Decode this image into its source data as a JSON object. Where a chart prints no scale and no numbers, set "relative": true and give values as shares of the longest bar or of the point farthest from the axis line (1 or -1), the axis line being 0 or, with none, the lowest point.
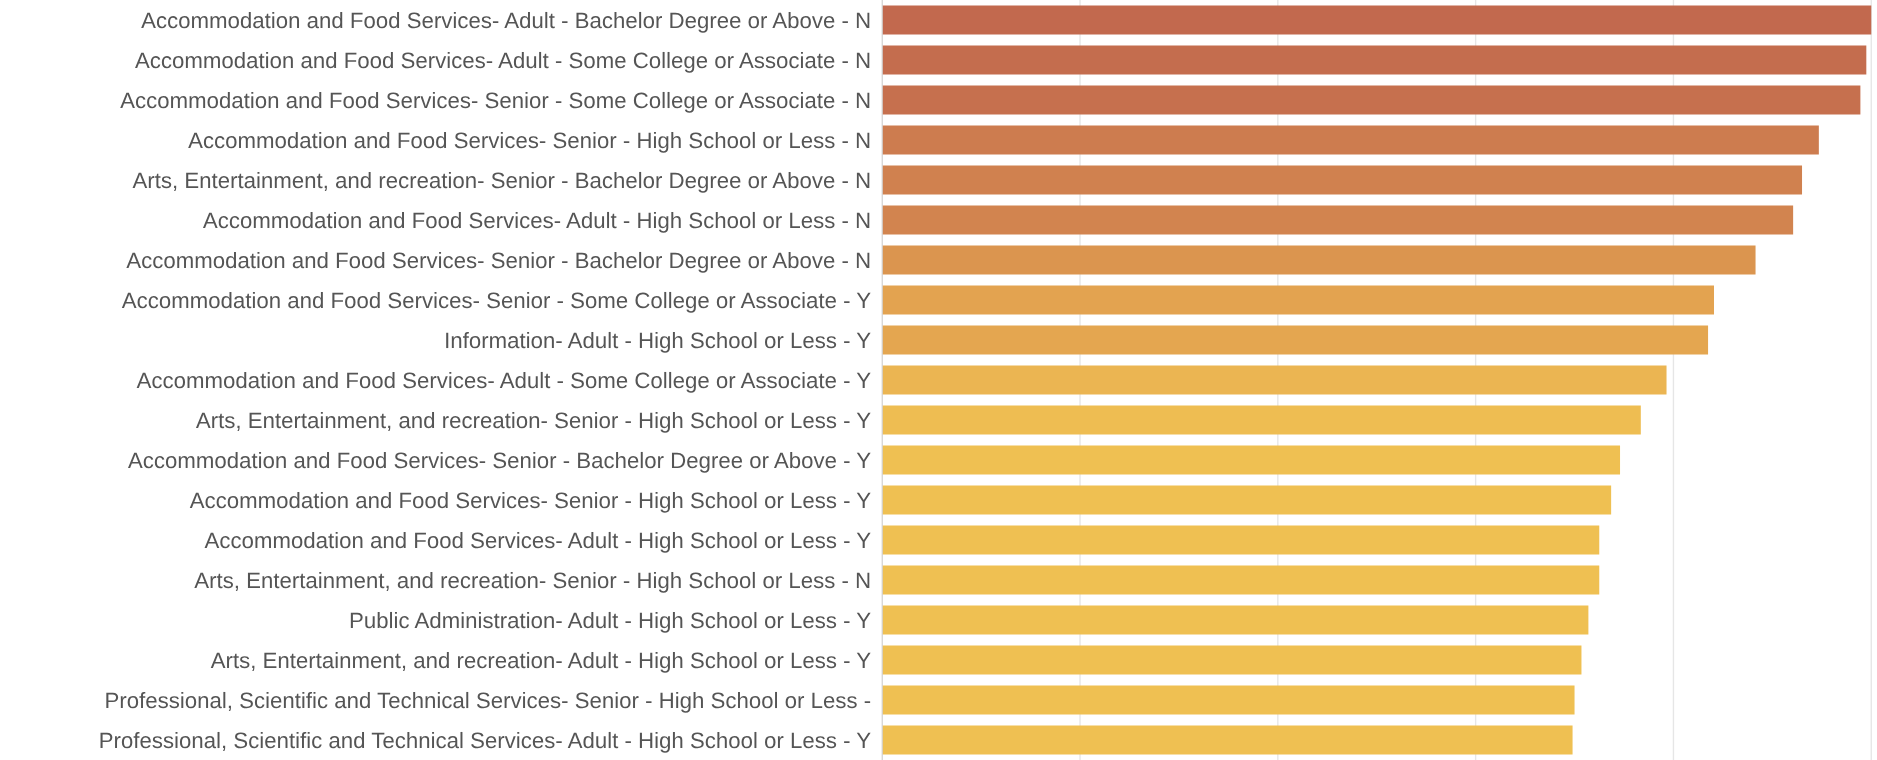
{
  "chart_data": {
    "type": "bar",
    "orientation": "horizontal",
    "relative": true,
    "grid": "x",
    "tick_labels": "y",
    "categories": [
      "Accommodation and Food Services- Adult - Bachelor Degree or Above - N",
      "Accommodation and Food Services- Adult - Some College or Associate - N",
      "Accommodation and Food Services- Senior - Some College or Associate - N",
      "Accommodation and Food Services- Senior - High School or Less - N",
      "Arts, Entertainment, and recreation- Senior - Bachelor Degree or Above - N",
      "Accommodation and Food Services- Adult - High School or Less - N",
      "Accommodation and Food Services- Senior - Bachelor Degree or Above - N",
      "Accommodation and Food Services- Senior - Some College or Associate - Y",
      "Information- Adult - High School or Less - Y",
      "Accommodation and Food Services- Adult - Some College or Associate - Y",
      "Arts, Entertainment, and recreation- Senior - High School or Less - Y",
      "Accommodation and Food Services- Senior - Bachelor Degree or Above - Y",
      "Accommodation and Food Services- Senior - High School or Less - Y",
      "Accommodation and Food Services- Adult - High School or Less - Y",
      "Arts, Entertainment, and recreation- Senior - High School or Less - N",
      "Public Administration- Adult - High School or Less - Y",
      "Arts, Entertainment, and recreation- Adult - High School or Less - Y",
      "Professional, Scientific and Technical Services- Senior - High School or Less -",
      "Professional, Scientific and Technical Services- Adult - High School or Less - Y"
    ],
    "values": [
      1,
      0.995,
      0.989,
      0.947,
      0.93,
      0.921,
      0.883,
      0.841,
      0.835,
      0.793,
      0.767,
      0.746,
      0.737,
      0.725,
      0.725,
      0.714,
      0.707,
      0.7,
      0.698
    ],
    "colors": [
      "#c2694e",
      "#c46d4e",
      "#c6704e",
      "#cd7c4f",
      "#d0814f",
      "#d2844f",
      "#db954f",
      "#e3a350",
      "#e4a650",
      "#ebb552",
      "#eebd52",
      "#efc052",
      "#efc052",
      "#efc052",
      "#efc052",
      "#efc052",
      "#efc052",
      "#efc052",
      "#efc052"
    ]
  }
}
